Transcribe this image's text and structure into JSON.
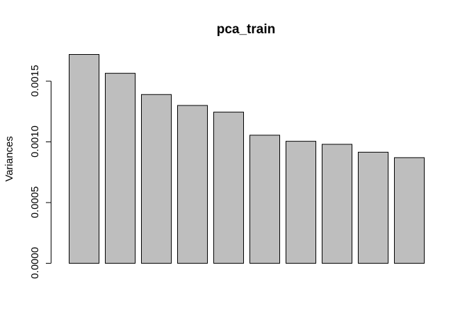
{
  "chart_data": {
    "type": "bar",
    "title": "pca_train",
    "xlabel": "",
    "ylabel": "Variances",
    "categories": [
      "",
      "",
      "",
      "",
      "",
      "",
      "",
      "",
      "",
      ""
    ],
    "values": [
      0.00172,
      0.001565,
      0.00139,
      0.0013,
      0.001245,
      0.001055,
      0.001005,
      0.00098,
      0.000915,
      0.00087
    ],
    "ylim": [
      0,
      0.00172
    ],
    "yticks": [
      0,
      0.0005,
      0.001,
      0.0015
    ],
    "ytick_labels": [
      "0.0000",
      "0.0005",
      "0.0010",
      "0.0015"
    ],
    "grid": false,
    "legend": "none",
    "colors": {
      "bar_fill": "#bebebe",
      "bar_stroke": "#000000"
    }
  }
}
